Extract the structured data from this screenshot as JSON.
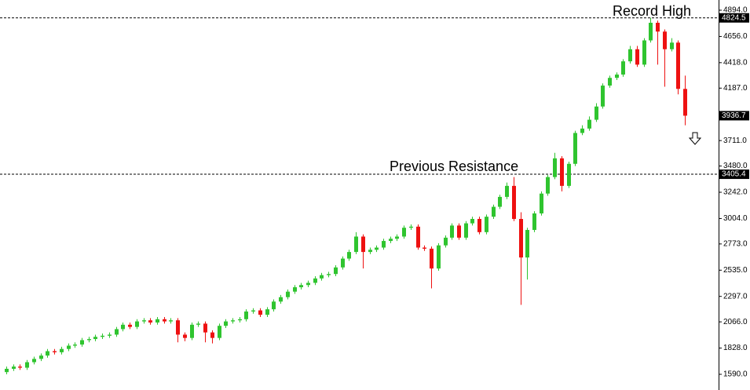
{
  "chart_data": {
    "type": "candlestick",
    "annotations": [
      "Record High",
      "Previous Resistance"
    ],
    "ylim": [
      1554.4,
      4986.6
    ],
    "yticks": [
      {
        "value": 1590,
        "label": "1590.0"
      },
      {
        "value": 1828,
        "label": "1828.0"
      },
      {
        "value": 2066,
        "label": "2066.0"
      },
      {
        "value": 2297,
        "label": "2297.0"
      },
      {
        "value": 2535,
        "label": "2535.0"
      },
      {
        "value": 2773,
        "label": "2773.0"
      },
      {
        "value": 3004,
        "label": "3004.0"
      },
      {
        "value": 3242,
        "label": "3242.0"
      },
      {
        "value": 3480,
        "label": "3480.0"
      },
      {
        "value": 3711,
        "label": "3711.0"
      },
      {
        "value": 4187,
        "label": "4187.0"
      },
      {
        "value": 4418,
        "label": "4418.0"
      },
      {
        "value": 4656,
        "label": "4656.0"
      },
      {
        "value": 4894,
        "label": "4894.0"
      }
    ],
    "levels": [
      4824.5,
      3405.4
    ],
    "last_price": 3936.7,
    "up_color": "#2fc42f",
    "down_color": "#ee1111",
    "open": [
      1610,
      1640,
      1660,
      1650,
      1700,
      1730,
      1760,
      1800,
      1790,
      1820,
      1850,
      1860,
      1900,
      1910,
      1930,
      1940,
      1950,
      2000,
      2040,
      2020,
      2070,
      2080,
      2060,
      2090,
      2070,
      2080,
      1950,
      1920,
      2040,
      2050,
      1970,
      1920,
      2030,
      2070,
      2080,
      2090,
      2160,
      2170,
      2130,
      2180,
      2250,
      2290,
      2340,
      2380,
      2400,
      2420,
      2460,
      2490,
      2500,
      2560,
      2640,
      2700,
      2840,
      2700,
      2720,
      2740,
      2800,
      2820,
      2840,
      2920,
      2930,
      2740,
      2730,
      2550,
      2760,
      2830,
      2940,
      2830,
      2960,
      3000,
      2880,
      3020,
      3110,
      3200,
      3300,
      3000,
      2650,
      2900,
      3050,
      3230,
      3380,
      3550,
      3300,
      3500,
      3780,
      3820,
      3900,
      4020,
      4210,
      4280,
      4310,
      4430,
      4540,
      4400,
      4620,
      4780,
      4700,
      4540,
      4600,
      4180
    ],
    "high": [
      1660,
      1680,
      1680,
      1720,
      1750,
      1780,
      1820,
      1820,
      1840,
      1870,
      1880,
      1920,
      1930,
      1950,
      1960,
      1970,
      2020,
      2060,
      2060,
      2090,
      2100,
      2100,
      2110,
      2110,
      2100,
      2100,
      1970,
      2060,
      2070,
      2070,
      1990,
      2050,
      2090,
      2100,
      2110,
      2180,
      2190,
      2190,
      2200,
      2270,
      2310,
      2360,
      2400,
      2420,
      2440,
      2480,
      2510,
      2520,
      2580,
      2660,
      2720,
      2880,
      2860,
      2740,
      2760,
      2820,
      2840,
      2860,
      2940,
      2950,
      2950,
      2760,
      2750,
      2780,
      2850,
      2960,
      2960,
      2980,
      3020,
      3020,
      3040,
      3130,
      3220,
      3330,
      3380,
      3060,
      2920,
      3070,
      3250,
      3400,
      3600,
      3570,
      3520,
      3800,
      3850,
      3930,
      4050,
      4230,
      4300,
      4330,
      4450,
      4570,
      4570,
      4640,
      4824.5,
      4800,
      4720,
      4640,
      4620,
      4300
    ],
    "low": [
      1590,
      1620,
      1630,
      1630,
      1680,
      1710,
      1740,
      1770,
      1770,
      1800,
      1830,
      1840,
      1880,
      1890,
      1910,
      1920,
      1930,
      1980,
      2000,
      2000,
      2050,
      2040,
      2040,
      2050,
      2050,
      1880,
      1890,
      1900,
      2020,
      1880,
      1870,
      1900,
      2010,
      2050,
      2060,
      2070,
      2140,
      2110,
      2110,
      2160,
      2230,
      2270,
      2320,
      2360,
      2380,
      2400,
      2440,
      2470,
      2480,
      2540,
      2620,
      2680,
      2550,
      2680,
      2700,
      2720,
      2780,
      2800,
      2820,
      2900,
      2720,
      2710,
      2370,
      2530,
      2740,
      2810,
      2810,
      2810,
      2940,
      2860,
      2860,
      3000,
      3090,
      3180,
      2980,
      2220,
      2450,
      2880,
      3030,
      3210,
      3360,
      3250,
      3280,
      3480,
      3760,
      3800,
      3880,
      4000,
      4190,
      4260,
      4290,
      4410,
      4380,
      4380,
      4600,
      4400,
      4200,
      4520,
      4130,
      3850
    ],
    "close": [
      1640,
      1660,
      1650,
      1700,
      1730,
      1760,
      1800,
      1790,
      1820,
      1850,
      1860,
      1900,
      1910,
      1930,
      1940,
      1950,
      2000,
      2040,
      2020,
      2070,
      2080,
      2060,
      2090,
      2070,
      2080,
      1950,
      1920,
      2040,
      2050,
      1970,
      1920,
      2030,
      2070,
      2080,
      2090,
      2160,
      2170,
      2130,
      2180,
      2250,
      2290,
      2340,
      2380,
      2400,
      2420,
      2460,
      2490,
      2500,
      2560,
      2640,
      2700,
      2840,
      2700,
      2720,
      2740,
      2800,
      2820,
      2840,
      2920,
      2930,
      2740,
      2730,
      2550,
      2760,
      2830,
      2940,
      2830,
      2960,
      3000,
      2880,
      3020,
      3110,
      3200,
      3300,
      3000,
      2650,
      2900,
      3050,
      3230,
      3380,
      3550,
      3300,
      3500,
      3780,
      3820,
      3900,
      4020,
      4210,
      4280,
      4310,
      4430,
      4540,
      4400,
      4620,
      4780,
      4700,
      4540,
      4600,
      4180,
      3936.7
    ]
  }
}
